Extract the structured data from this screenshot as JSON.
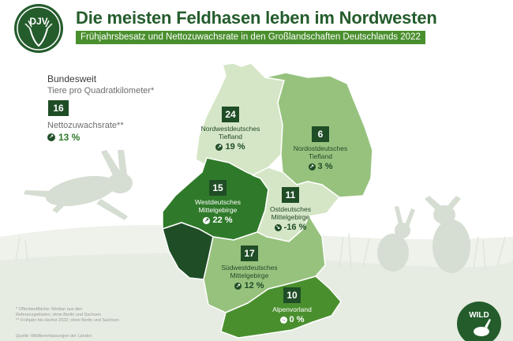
{
  "header": {
    "logo_text": "DJV",
    "title": "Die meisten Feldhasen leben im Nordwesten",
    "subtitle": "Frühjahrsbesatz und Nettozuwachsrate in den Großlandschaften Deutschlands 2022"
  },
  "national": {
    "heading": "Bundesweit",
    "density_label": "Tiere pro Quadratkilometer*",
    "density_value": "16",
    "growth_label": "Nettozuwachsrate**",
    "growth_value": "13 %"
  },
  "regions": [
    {
      "name_line1": "Nordwestdeutsches",
      "name_line2": "Tiefland",
      "density": "24",
      "growth": "19 %",
      "growth_direction": "up"
    },
    {
      "name_line1": "Nordostdeutsches",
      "name_line2": "Tiefland",
      "density": "6",
      "growth": "3 %",
      "growth_direction": "up"
    },
    {
      "name_line1": "Westdeutsches",
      "name_line2": "Mittelgebirge",
      "density": "15",
      "growth": "22 %",
      "growth_direction": "up"
    },
    {
      "name_line1": "Ostdeutsches",
      "name_line2": "Mittelgebirge",
      "density": "11",
      "growth": "-16 %",
      "growth_direction": "down"
    },
    {
      "name_line1": "Südwestdeutsches",
      "name_line2": "Mittelgebirge",
      "density": "17",
      "growth": "12 %",
      "growth_direction": "up"
    },
    {
      "name_line1": "Alpenvorland",
      "name_line2": "",
      "density": "10",
      "growth": "0 %",
      "growth_direction": "flat"
    }
  ],
  "footnotes": {
    "line1": "* Offenlandfläche; Median aus den",
    "line2": "Referenzgebieten; ohne Berlin und Sachsen",
    "line3": "** Frühjahr bis Herbst 2022; ohne Berlin und Sachsen",
    "source": "Quelle: Wildtiererfassungen der Länder;"
  },
  "wild_logo_text": "WILD",
  "colors": {
    "darkest": "#1f4d26",
    "dark": "#2f7a2a",
    "mid": "#4a8f2e",
    "light": "#97c27e",
    "lightest": "#d5e6c6",
    "title": "#245c2c"
  }
}
